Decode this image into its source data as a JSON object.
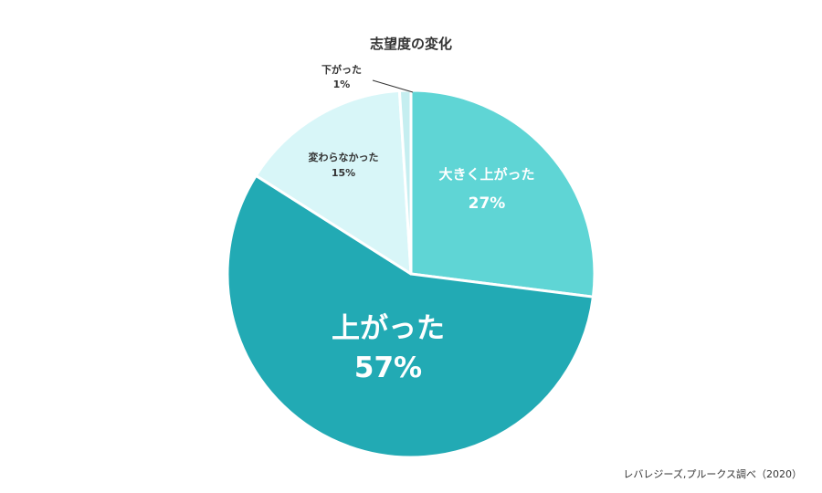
{
  "chart_data": {
    "type": "pie",
    "title": "志望度の変化",
    "slices": [
      {
        "label": "大きく上がった",
        "value": 27,
        "value_label": "27%",
        "color": "#5fd5d5",
        "label_color": "#ffffff"
      },
      {
        "label": "上がった",
        "value": 57,
        "value_label": "57%",
        "color": "#22aab4",
        "label_color": "#ffffff"
      },
      {
        "label": "変わらなかった",
        "value": 15,
        "value_label": "15%",
        "color": "#d8f6f8",
        "label_color": "#333333"
      },
      {
        "label": "下がった",
        "value": 1,
        "value_label": "1%",
        "color": "#c5eef0",
        "label_color": "#333333"
      }
    ],
    "source": "レバレジーズ,プルークス調べ（2020）"
  }
}
